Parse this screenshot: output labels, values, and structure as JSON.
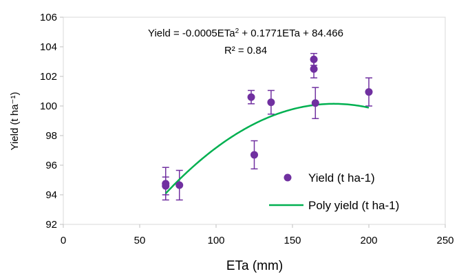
{
  "chart_data": {
    "type": "scatter",
    "xlabel": "ETa (mm)",
    "ylabel": "Yield (t ha⁻¹)",
    "xlim": [
      0,
      250
    ],
    "ylim": [
      92,
      106
    ],
    "x_ticks": [
      "0",
      "50",
      "100",
      "150",
      "200",
      "250"
    ],
    "y_ticks": [
      "92",
      "94",
      "96",
      "98",
      "100",
      "102",
      "104",
      "106"
    ],
    "grid": false,
    "legend_position": "bottom-right",
    "series": [
      {
        "name": "Yield (t ha-1)",
        "kind": "scatter",
        "color": "#7030A0",
        "points": [
          {
            "x": 67,
            "y": 94.75,
            "err": 1.1
          },
          {
            "x": 67,
            "y": 94.6,
            "err": 0.6
          },
          {
            "x": 76,
            "y": 94.65,
            "err": 1.0
          },
          {
            "x": 123,
            "y": 100.6,
            "err": 0.45
          },
          {
            "x": 125,
            "y": 96.7,
            "err": 0.95
          },
          {
            "x": 136,
            "y": 100.25,
            "err": 0.8
          },
          {
            "x": 164,
            "y": 103.15,
            "err": 0.4
          },
          {
            "x": 164,
            "y": 102.5,
            "err": 0.6
          },
          {
            "x": 165,
            "y": 100.2,
            "err": 1.05
          },
          {
            "x": 200,
            "y": 100.95,
            "err": 0.95
          }
        ]
      },
      {
        "name": "Poly yield (t ha-1)",
        "kind": "line",
        "color": "#00B050",
        "equation": {
          "a": -0.0005,
          "b": 0.1771,
          "c": 84.466
        },
        "x_range": [
          67,
          200
        ]
      }
    ],
    "annotations": {
      "equation_prefix": "Yield = -0.0005ETa",
      "equation_sup": "2",
      "equation_suffix": " + 0.1771ETa  + 84.466",
      "r_squared": "R² = 0.84"
    }
  }
}
